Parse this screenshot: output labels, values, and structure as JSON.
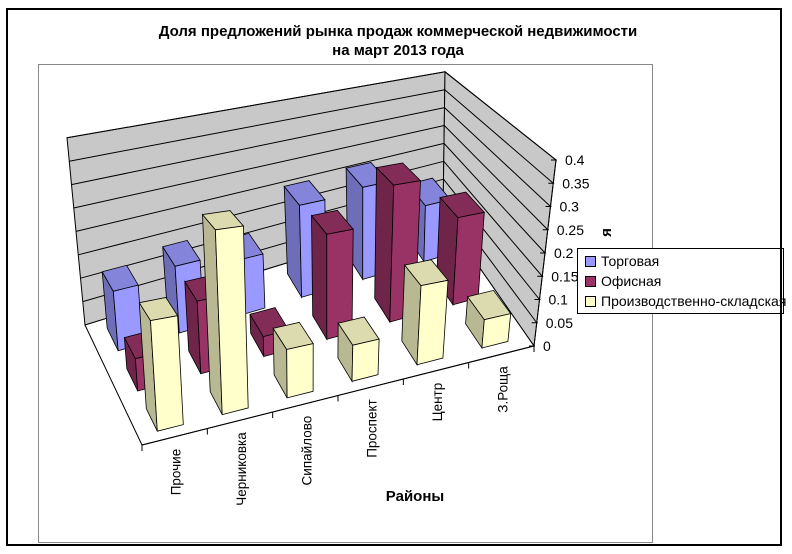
{
  "title": {
    "line1": "Доля предложений рынка продаж коммерческой недвижимости",
    "line2": "на март 2013 года"
  },
  "chart_data": {
    "type": "bar",
    "subtype": "3d-column-perspective",
    "title": "Доля предложений рынка продаж коммерческой недвижимости на март 2013 года",
    "categories": [
      "Прочие",
      "Черниковка",
      "Сипайлово",
      "Проспект",
      "Центр",
      "З.Роща"
    ],
    "series": [
      {
        "name": "Торговая",
        "color": "#9999FF",
        "values": [
          0.12,
          0.14,
          0.12,
          0.21,
          0.22,
          0.14
        ]
      },
      {
        "name": "Офисная",
        "color": "#993366",
        "values": [
          0.06,
          0.14,
          0.04,
          0.22,
          0.3,
          0.2
        ]
      },
      {
        "name": "Производственно-складская",
        "color": "#FFFFCC",
        "values": [
          0.19,
          0.33,
          0.09,
          0.07,
          0.16,
          0.06
        ]
      }
    ],
    "xlabel": "Районы",
    "ylabel": "Доля",
    "ylim": [
      0,
      0.4
    ],
    "ytick_step": 0.05,
    "yticks": [
      "0",
      "0.05",
      "0.1",
      "0.15",
      "0.2",
      "0.25",
      "0.3",
      "0.35",
      "0.4"
    ],
    "legend_position": "right",
    "grid": true,
    "wall_color": "#C8C8C8",
    "floor_color": "#FFFFFF",
    "gridline_color": "#000000"
  }
}
